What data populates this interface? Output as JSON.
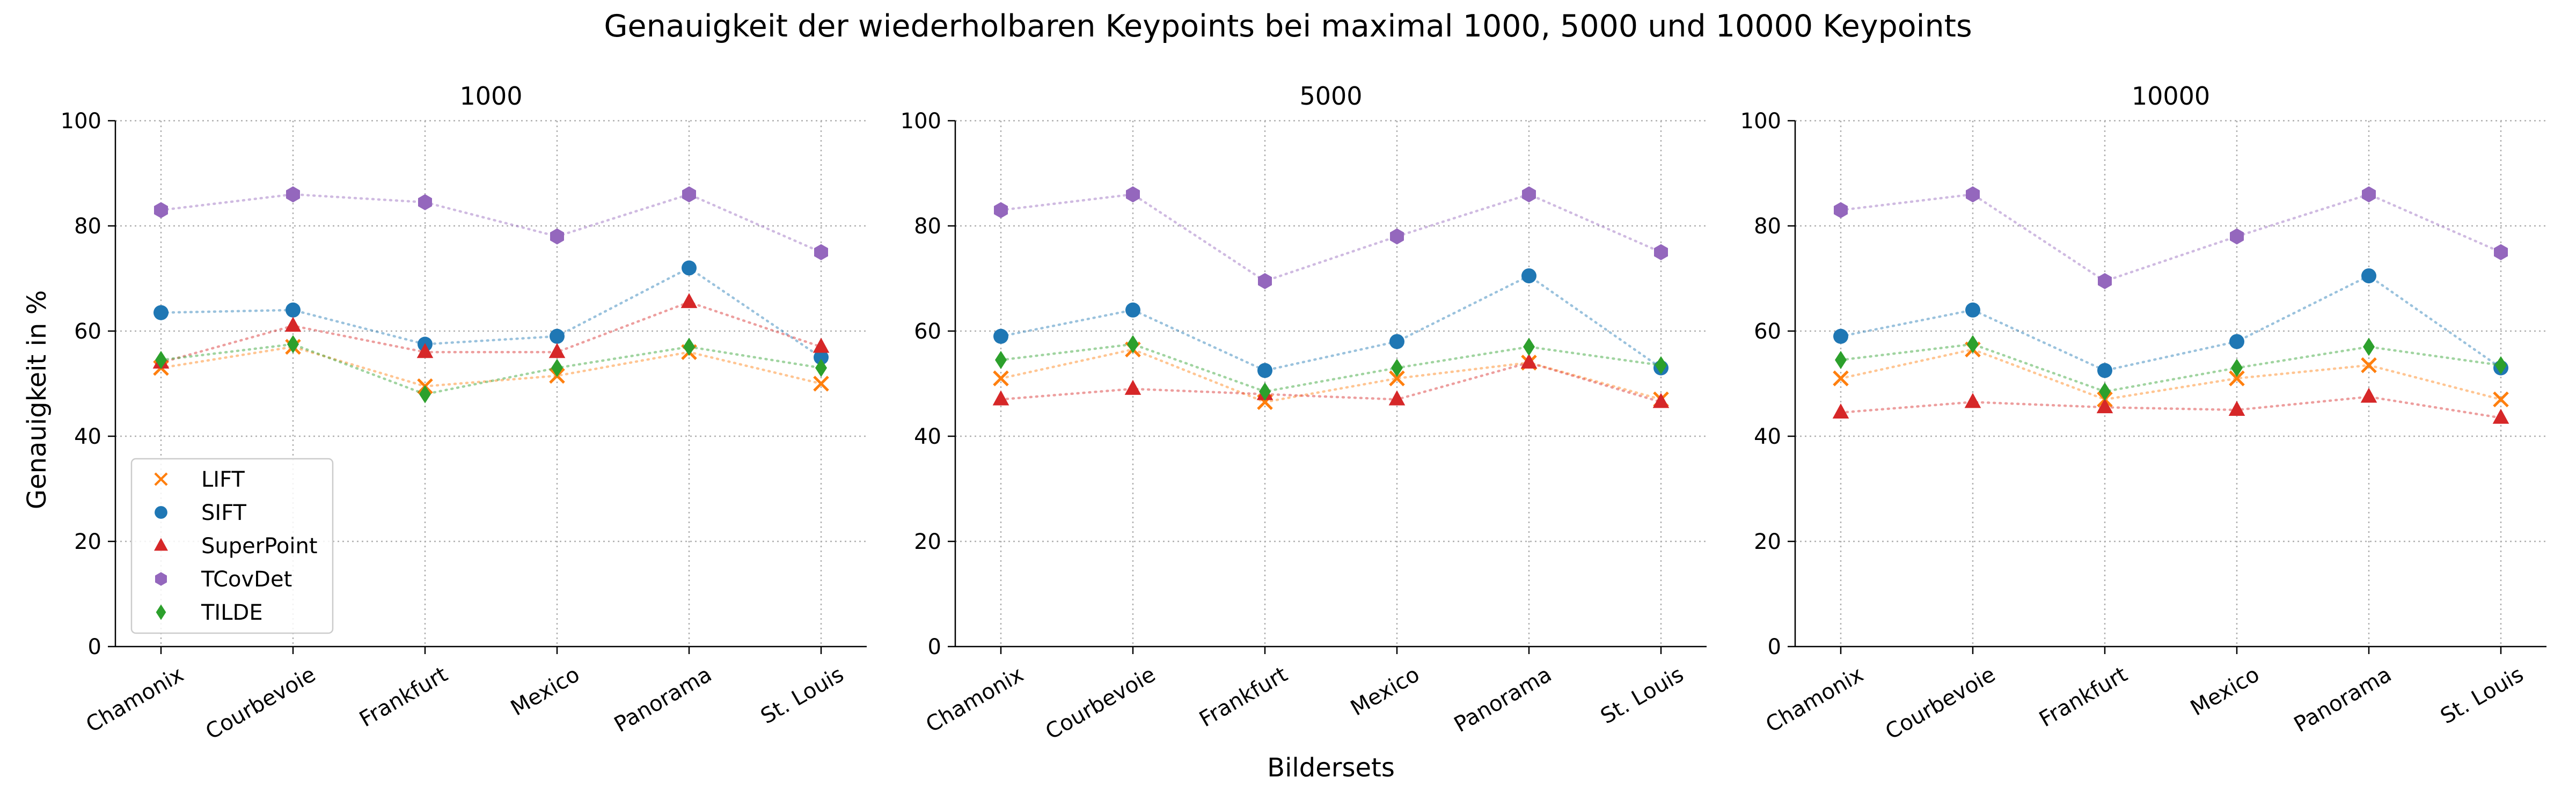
{
  "figure": {
    "suptitle": "Genauigkeit der wiederholbaren Keypoints bei maximal 1000, 5000 und 10000 Keypoints",
    "xlabel": "Bildersets",
    "ylabel": "Genauigkeit in %"
  },
  "legend": {
    "placement": "lower-left of first panel",
    "entries": [
      "LIFT",
      "SIFT",
      "SuperPoint",
      "TCovDet",
      "TILDE"
    ]
  },
  "styles": {
    "LIFT": {
      "color": "#ff7f0e",
      "marker": "x"
    },
    "SIFT": {
      "color": "#1f77b4",
      "marker": "circle"
    },
    "SuperPoint": {
      "color": "#d62728",
      "marker": "triangle"
    },
    "TCovDet": {
      "color": "#9467bd",
      "marker": "hexagon"
    },
    "TILDE": {
      "color": "#2ca02c",
      "marker": "diamond"
    }
  },
  "chart_data": [
    {
      "type": "line",
      "title": "1000",
      "categories": [
        "Chamonix",
        "Courbevoie",
        "Frankfurt",
        "Mexico",
        "Panorama",
        "St. Louis"
      ],
      "ylim": [
        0,
        100
      ],
      "yticks": [
        0,
        20,
        40,
        60,
        80,
        100
      ],
      "grid": true,
      "series": [
        {
          "name": "LIFT",
          "values": [
            53,
            57,
            49.5,
            51.5,
            56,
            50
          ]
        },
        {
          "name": "SIFT",
          "values": [
            63.5,
            64,
            57.5,
            59,
            72,
            55
          ]
        },
        {
          "name": "SuperPoint",
          "values": [
            54,
            61,
            56,
            56,
            65.5,
            57
          ]
        },
        {
          "name": "TCovDet",
          "values": [
            83,
            86,
            84.5,
            78,
            86,
            75
          ]
        },
        {
          "name": "TILDE",
          "values": [
            54.5,
            57.5,
            48,
            53,
            57,
            53
          ]
        }
      ]
    },
    {
      "type": "line",
      "title": "5000",
      "categories": [
        "Chamonix",
        "Courbevoie",
        "Frankfurt",
        "Mexico",
        "Panorama",
        "St. Louis"
      ],
      "ylim": [
        0,
        100
      ],
      "yticks": [
        0,
        20,
        40,
        60,
        80,
        100
      ],
      "grid": true,
      "series": [
        {
          "name": "LIFT",
          "values": [
            51,
            56.5,
            46.5,
            51,
            54,
            47
          ]
        },
        {
          "name": "SIFT",
          "values": [
            59,
            64,
            52.5,
            58,
            70.5,
            53
          ]
        },
        {
          "name": "SuperPoint",
          "values": [
            47,
            49,
            48,
            47,
            54,
            46.5
          ]
        },
        {
          "name": "TCovDet",
          "values": [
            83,
            86,
            69.5,
            78,
            86,
            75
          ]
        },
        {
          "name": "TILDE",
          "values": [
            54.5,
            57.5,
            48.5,
            53,
            57,
            53.5
          ]
        }
      ]
    },
    {
      "type": "line",
      "title": "10000",
      "categories": [
        "Chamonix",
        "Courbevoie",
        "Frankfurt",
        "Mexico",
        "Panorama",
        "St. Louis"
      ],
      "ylim": [
        0,
        100
      ],
      "yticks": [
        0,
        20,
        40,
        60,
        80,
        100
      ],
      "grid": true,
      "series": [
        {
          "name": "LIFT",
          "values": [
            51,
            56.5,
            47,
            51,
            53.5,
            47
          ]
        },
        {
          "name": "SIFT",
          "values": [
            59,
            64,
            52.5,
            58,
            70.5,
            53
          ]
        },
        {
          "name": "SuperPoint",
          "values": [
            44.5,
            46.5,
            45.5,
            45,
            47.5,
            43.5
          ]
        },
        {
          "name": "TCovDet",
          "values": [
            83,
            86,
            69.5,
            78,
            86,
            75
          ]
        },
        {
          "name": "TILDE",
          "values": [
            54.5,
            57.5,
            48.5,
            53,
            57,
            53.5
          ]
        }
      ]
    }
  ]
}
